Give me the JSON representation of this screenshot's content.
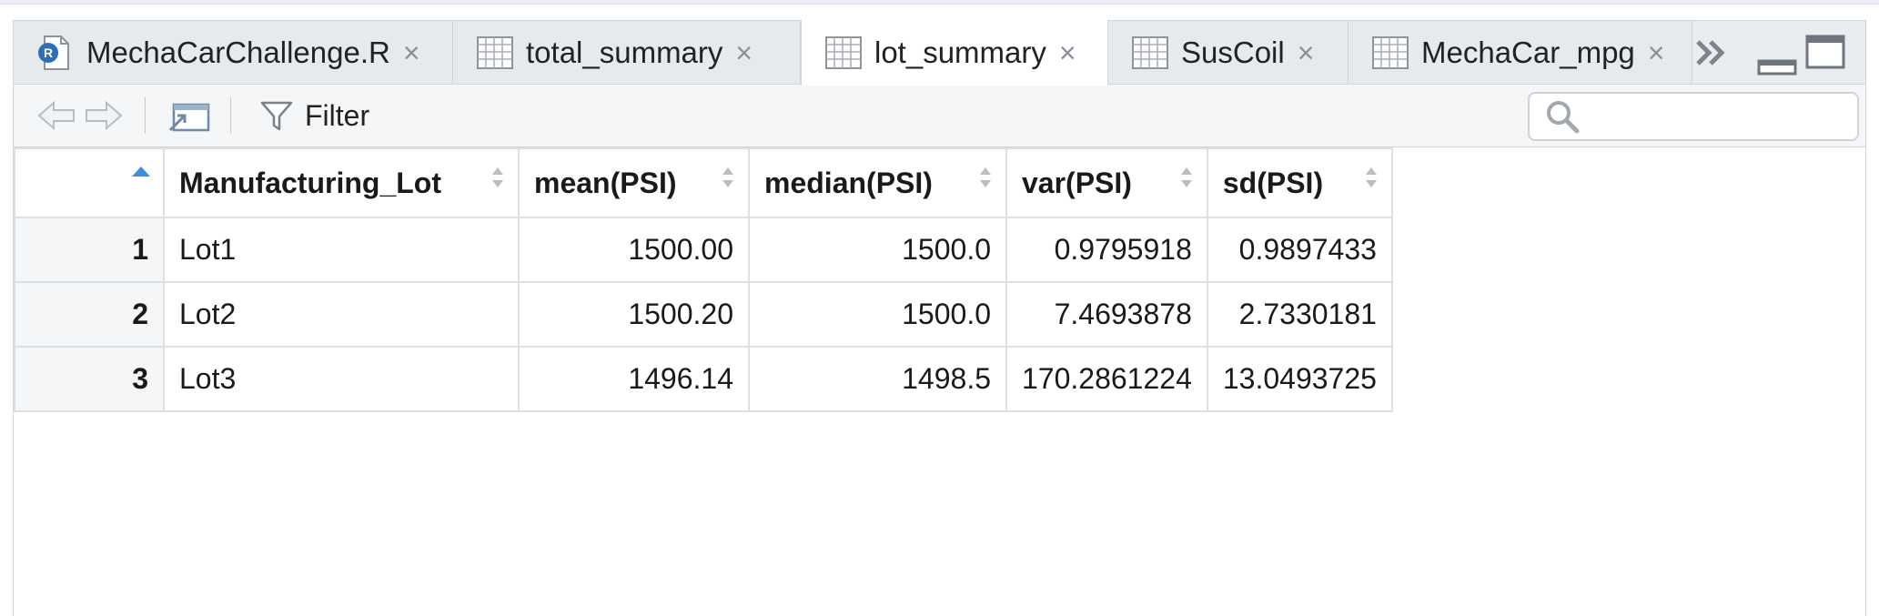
{
  "tabs": [
    {
      "label": "MechaCarChallenge.R",
      "icon": "r-script-icon",
      "active": false
    },
    {
      "label": "total_summary",
      "icon": "table-icon",
      "active": false
    },
    {
      "label": "lot_summary",
      "icon": "table-icon",
      "active": true
    },
    {
      "label": "SusCoil",
      "icon": "table-icon",
      "active": false
    },
    {
      "label": "MechaCar_mpg",
      "icon": "table-icon",
      "active": false
    }
  ],
  "tab_close_glyph": "×",
  "toolbar": {
    "filter_label": "Filter",
    "search_placeholder": ""
  },
  "table": {
    "columns": [
      "Manufacturing_Lot",
      "mean(PSI)",
      "median(PSI)",
      "var(PSI)",
      "sd(PSI)"
    ],
    "rows": [
      {
        "index": "1",
        "cells": [
          "Lot1",
          "1500.00",
          "1500.0",
          "0.9795918",
          "0.9897433"
        ]
      },
      {
        "index": "2",
        "cells": [
          "Lot2",
          "1500.20",
          "1500.0",
          "7.4693878",
          "2.7330181"
        ]
      },
      {
        "index": "3",
        "cells": [
          "Lot3",
          "1496.14",
          "1498.5",
          "170.2861224",
          "13.0493725"
        ]
      }
    ]
  },
  "colors": {
    "sort_active": "#3b8fe0",
    "sort_inactive": "#b9bec4",
    "border": "#dcdfe3"
  }
}
